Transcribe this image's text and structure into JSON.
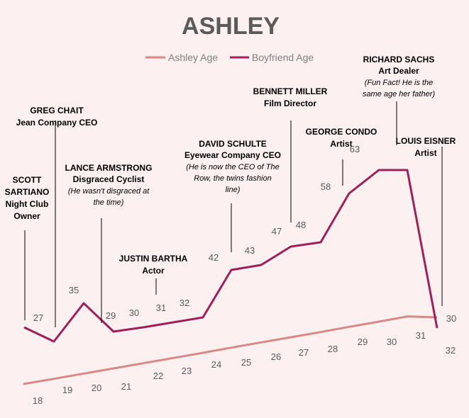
{
  "chart_data": {
    "type": "line",
    "title": "ASHLEY",
    "legend_position": "top",
    "grid": false,
    "series": [
      {
        "name": "Ashley Age",
        "color": "#d98888",
        "values": [
          18,
          19,
          20,
          21,
          22,
          23,
          24,
          25,
          26,
          27,
          28,
          29,
          30,
          31,
          32
        ]
      },
      {
        "name": "Boyfriend Age",
        "color": "#9e2058",
        "values": [
          null,
          27,
          35,
          29,
          30,
          31,
          32,
          42,
          43,
          47,
          48,
          58,
          63,
          63,
          30
        ]
      }
    ],
    "ylim": [
      10,
      70
    ],
    "annotations": [
      {
        "name": "annotation-scott-sartiano",
        "lines": [
          "SCOTT",
          "SARTIANO",
          "Night Club",
          "Owner"
        ],
        "italic": []
      },
      {
        "name": "annotation-greg-chait",
        "lines": [
          "GREG CHAIT",
          "Jean Company CEO"
        ],
        "italic": []
      },
      {
        "name": "annotation-lance-armstrong",
        "lines": [
          "LANCE ARMSTRONG",
          "Disgraced Cyclist"
        ],
        "italic": [
          "(He wasn't disgraced at",
          "the time)"
        ]
      },
      {
        "name": "annotation-justin-bartha",
        "lines": [
          "JUSTIN BARTHA",
          "Actor"
        ],
        "italic": []
      },
      {
        "name": "annotation-david-schulte",
        "lines": [
          "DAVID SCHULTE",
          "Eyewear Company CEO"
        ],
        "italic": [
          "(He is now the CEO of The",
          "Row, the twins fashion",
          "line)"
        ]
      },
      {
        "name": "annotation-bennett-miller",
        "lines": [
          "BENNETT MILLER",
          "Film  Director"
        ],
        "italic": []
      },
      {
        "name": "annotation-george-condo",
        "lines": [
          "GEORGE CONDO",
          "Artist"
        ],
        "italic": []
      },
      {
        "name": "annotation-richard-sachs",
        "lines": [
          "RICHARD SACHS",
          "Art Dealer"
        ],
        "italic": [
          "(Fun Fact! He is the",
          "same age her father)"
        ]
      },
      {
        "name": "annotation-louis-eisner",
        "lines": [
          "LOUIS EISNER",
          "Artist"
        ],
        "italic": []
      }
    ]
  }
}
